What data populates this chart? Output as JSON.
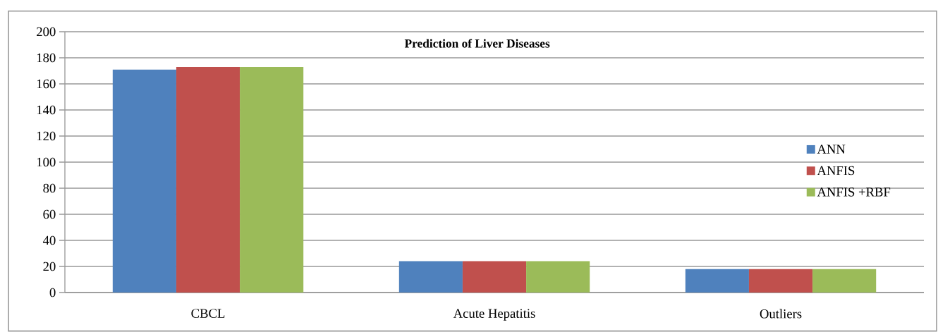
{
  "chart_data": {
    "type": "bar",
    "title": "Prediction of Liver Diseases",
    "categories": [
      "CBCL",
      "Acute Hepatitis",
      "Outliers"
    ],
    "series": [
      {
        "name": "ANN",
        "color": "#4f81bd",
        "values": [
          171,
          24,
          18
        ]
      },
      {
        "name": "ANFIS",
        "color": "#c0504d",
        "values": [
          173,
          24,
          18
        ]
      },
      {
        "name": "ANFIS +RBF",
        "color": "#9bbb59",
        "values": [
          173,
          24,
          18
        ]
      }
    ],
    "ylim": [
      0,
      200
    ],
    "yticks": [
      0,
      20,
      40,
      60,
      80,
      100,
      120,
      140,
      160,
      180,
      200
    ],
    "grid": "y",
    "legend": "right"
  }
}
